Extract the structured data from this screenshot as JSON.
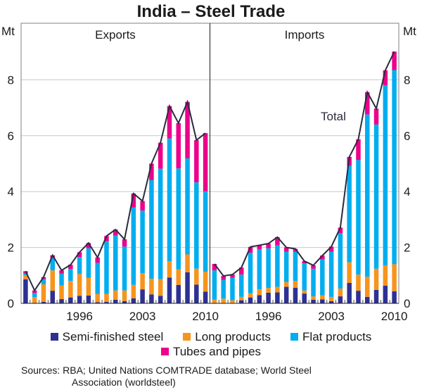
{
  "chart_data": {
    "type": "bar",
    "stacked": true,
    "title": "India – Steel Trade",
    "unit_left": "Mt",
    "unit_right": "Mt",
    "ylim": [
      0,
      10
    ],
    "yticks": [
      0,
      2,
      4,
      6,
      8
    ],
    "xtick_labels": [
      "1996",
      "2003",
      "2010"
    ],
    "grid": true,
    "legend_position": "bottom",
    "categories": [
      "1990",
      "1991",
      "1992",
      "1993",
      "1994",
      "1995",
      "1996",
      "1997",
      "1998",
      "1999",
      "2000",
      "2001",
      "2002",
      "2003",
      "2004",
      "2005",
      "2006",
      "2007",
      "2008",
      "2009",
      "2010"
    ],
    "series_meta": [
      {
        "key": "semi",
        "name": "Semi-finished steel",
        "color": "#2e3192"
      },
      {
        "key": "long",
        "name": "Long products",
        "color": "#f7941d"
      },
      {
        "key": "flat",
        "name": "Flat products",
        "color": "#00aeef"
      },
      {
        "key": "tubes",
        "name": "Tubes and pipes",
        "color": "#ec008c"
      }
    ],
    "total_line": {
      "name": "Total",
      "color": "#2b2b40"
    },
    "panels": [
      {
        "title": "Exports",
        "series": [
          {
            "name": "Semi-finished steel",
            "values": [
              0.86,
              0.02,
              0.05,
              0.45,
              0.15,
              0.21,
              0.27,
              0.28,
              0.04,
              0.05,
              0.13,
              0.08,
              0.18,
              0.5,
              0.32,
              0.27,
              0.92,
              0.66,
              1.11,
              0.67,
              0.42
            ]
          },
          {
            "name": "Long products",
            "values": [
              0.14,
              0.2,
              0.63,
              0.73,
              0.49,
              0.59,
              0.78,
              0.63,
              0.3,
              0.29,
              0.33,
              0.38,
              0.48,
              0.58,
              0.56,
              0.6,
              0.59,
              0.56,
              0.64,
              0.57,
              0.71
            ]
          },
          {
            "name": "Flat products",
            "values": [
              0.07,
              0.15,
              0.19,
              0.44,
              0.42,
              0.43,
              0.61,
              1.06,
              1.11,
              1.88,
              1.97,
              1.57,
              2.77,
              2.24,
              3.53,
              3.95,
              4.39,
              3.61,
              3.44,
              3.09,
              2.88
            ]
          },
          {
            "name": "Tubes and pipes",
            "values": [
              0.08,
              0.09,
              0.07,
              0.1,
              0.12,
              0.15,
              0.17,
              0.19,
              0.19,
              0.19,
              0.21,
              0.26,
              0.5,
              0.34,
              0.59,
              0.93,
              1.16,
              1.62,
              2.02,
              1.51,
              2.08
            ]
          }
        ],
        "total": [
          1.15,
          0.46,
          0.94,
          1.72,
          1.18,
          1.38,
          1.83,
          2.16,
          1.64,
          2.41,
          2.64,
          2.29,
          3.93,
          3.66,
          5.0,
          5.75,
          7.06,
          6.45,
          7.21,
          5.84,
          6.09
        ]
      },
      {
        "title": "Imports",
        "series": [
          {
            "name": "Semi-finished steel",
            "values": [
              0.02,
              0.01,
              0.01,
              0.11,
              0.21,
              0.29,
              0.38,
              0.39,
              0.59,
              0.56,
              0.35,
              0.13,
              0.14,
              0.08,
              0.25,
              0.73,
              0.45,
              0.23,
              0.48,
              0.63,
              0.43
            ]
          },
          {
            "name": "Long products",
            "values": [
              0.11,
              0.16,
              0.1,
              0.12,
              0.15,
              0.21,
              0.17,
              0.2,
              0.17,
              0.24,
              0.11,
              0.12,
              0.15,
              0.15,
              0.28,
              0.74,
              0.58,
              0.72,
              0.76,
              0.73,
              0.97
            ]
          },
          {
            "name": "Flat products",
            "values": [
              1.05,
              0.67,
              0.81,
              0.8,
              1.45,
              1.43,
              1.42,
              1.49,
              1.09,
              1.05,
              0.97,
              0.99,
              1.28,
              1.62,
              1.98,
              3.45,
              4.1,
              5.81,
              5.16,
              6.44,
              6.95
            ]
          },
          {
            "name": "Tubes and pipes",
            "values": [
              0.23,
              0.14,
              0.11,
              0.25,
              0.21,
              0.15,
              0.17,
              0.29,
              0.15,
              0.1,
              0.08,
              0.12,
              0.14,
              0.18,
              0.2,
              0.32,
              0.74,
              0.8,
              0.57,
              0.54,
              0.66
            ]
          }
        ],
        "total": [
          1.41,
          0.98,
          1.03,
          1.28,
          2.02,
          2.08,
          2.14,
          2.37,
          2.0,
          1.95,
          1.51,
          1.36,
          1.71,
          2.03,
          2.71,
          5.24,
          5.87,
          7.56,
          6.97,
          8.34,
          9.01
        ]
      }
    ],
    "annotations": [
      {
        "text": "Total",
        "panel": "Imports"
      }
    ]
  },
  "legend": {
    "items": [
      {
        "label": "Semi-finished steel",
        "color": "#2e3192"
      },
      {
        "label": "Long products",
        "color": "#f7941d"
      },
      {
        "label": "Flat products",
        "color": "#00aeef"
      },
      {
        "label": "Tubes and pipes",
        "color": "#ec008c"
      }
    ]
  },
  "footer": {
    "sources_line1": "Sources: RBA; United Nations COMTRADE database; World Steel",
    "sources_line2": "Association (worldsteel)"
  }
}
